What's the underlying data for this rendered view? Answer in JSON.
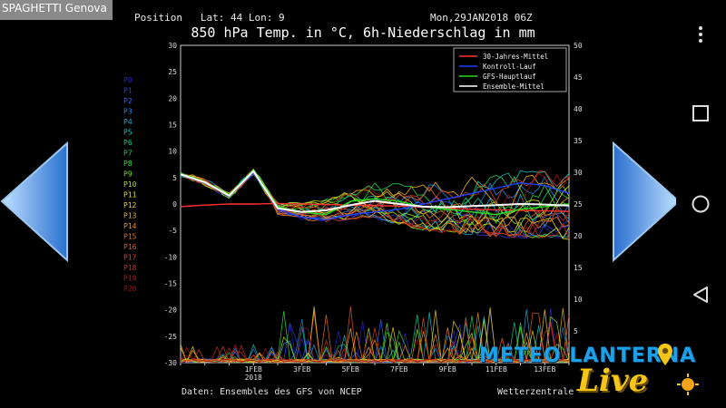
{
  "app": {
    "title": "SPAGHETTI Genova"
  },
  "header": {
    "position": "Position   Lat: 44 Lon: 9",
    "run": "Mon,29JAN2018 06Z",
    "title": "850 hPa Temp. in °C, 6h-Niederschlag in mm"
  },
  "footer": {
    "source": "Daten: Ensembles des GFS von NCEP",
    "credit": "Wetterzentrale"
  },
  "logo": {
    "text": "METEO LANTERNA",
    "script": "Live"
  },
  "nav": {
    "left_arrow": "left-arrow-icon",
    "right_arrow": "right-arrow-icon",
    "menu": "more-vert-icon",
    "recents": "square-icon",
    "home": "circle-icon",
    "back": "triangle-back-icon"
  },
  "colors": {
    "jahresmittel": "#ff3030",
    "kontroll": "#2040ff",
    "hauptlauf": "#20e020",
    "ensemble_mittel": "#ffffff",
    "accent_arrow": "#3a8fe0"
  },
  "chart_data": {
    "type": "line",
    "title": "850 hPa Temp. in °C, 6h-Niederschlag in mm",
    "y_left": {
      "min": -30,
      "max": 30,
      "ticks": [
        30,
        25,
        20,
        15,
        10,
        5,
        0,
        -5,
        -10,
        -15,
        -20,
        -25,
        -30
      ]
    },
    "y_right": {
      "min": 0,
      "max": 50,
      "ticks": [
        50,
        45,
        40,
        35,
        30,
        25,
        20,
        15,
        10,
        5
      ]
    },
    "x_ticks": [
      "1FEB",
      "3FEB",
      "5FEB",
      "7FEB",
      "9FEB",
      "11FEB",
      "13FEB"
    ],
    "x_year_label": "2018",
    "days": 16,
    "legend": [
      {
        "label": "30-Jahres-Mittel",
        "color": "#ff3030"
      },
      {
        "label": "Kontroll-Lauf",
        "color": "#2040ff"
      },
      {
        "label": "GFS-Hauptlauf",
        "color": "#20e020"
      },
      {
        "label": "Ensemble-Mittel",
        "color": "#ffffff"
      }
    ],
    "legend_position": "top-right",
    "members": [
      {
        "name": "P0",
        "color": "#2828c8"
      },
      {
        "name": "P1",
        "color": "#3040e0"
      },
      {
        "name": "P2",
        "color": "#3060ff"
      },
      {
        "name": "P3",
        "color": "#1c88e8"
      },
      {
        "name": "P4",
        "color": "#18a8d8"
      },
      {
        "name": "P5",
        "color": "#18c0c0"
      },
      {
        "name": "P6",
        "color": "#18c890"
      },
      {
        "name": "P7",
        "color": "#20d050"
      },
      {
        "name": "P8",
        "color": "#30e030"
      },
      {
        "name": "P9",
        "color": "#70e020"
      },
      {
        "name": "P10",
        "color": "#a8e018"
      },
      {
        "name": "P11",
        "color": "#d8e018"
      },
      {
        "name": "P12",
        "color": "#f0d018"
      },
      {
        "name": "P13",
        "color": "#f0b018"
      },
      {
        "name": "P14",
        "color": "#f09018"
      },
      {
        "name": "P15",
        "color": "#e87020"
      },
      {
        "name": "P16",
        "color": "#e05820"
      },
      {
        "name": "P17",
        "color": "#d84020"
      },
      {
        "name": "P18",
        "color": "#c83018"
      },
      {
        "name": "P19",
        "color": "#b82010"
      },
      {
        "name": "P20",
        "color": "#a01010"
      }
    ],
    "series": [
      {
        "name": "30-Jahres-Mittel",
        "color": "#ff3030",
        "kind": "temp",
        "values": [
          -0.5,
          -0.2,
          0.0,
          0.0,
          0.1,
          0.0,
          -0.1,
          -0.2,
          -0.3,
          -0.4,
          -0.6,
          -0.8,
          -1.0,
          -1.1,
          -1.2,
          -1.3,
          -1.4
        ]
      },
      {
        "name": "Kontroll-Lauf",
        "color": "#2040ff",
        "kind": "temp",
        "values": [
          5.5,
          4.0,
          1.5,
          6.0,
          -1.0,
          -2.5,
          -3.0,
          -2.0,
          -1.5,
          -1.0,
          0.0,
          1.0,
          2.0,
          3.0,
          4.0,
          3.5,
          2.0
        ]
      },
      {
        "name": "GFS-Hauptlauf",
        "color": "#20e020",
        "kind": "temp",
        "values": [
          5.8,
          4.2,
          1.8,
          6.5,
          -0.5,
          -1.5,
          -2.0,
          0.5,
          1.0,
          0.5,
          -0.5,
          -1.0,
          -1.5,
          -2.0,
          -1.0,
          -0.5,
          0.0
        ]
      },
      {
        "name": "Ensemble-Mittel",
        "color": "#ffffff",
        "kind": "temp",
        "values": [
          5.6,
          4.1,
          1.6,
          6.2,
          -0.8,
          -1.5,
          -1.2,
          -0.2,
          0.6,
          0.0,
          -0.5,
          -0.6,
          -0.4,
          -0.2,
          0.0,
          -0.1,
          -0.3
        ]
      }
    ]
  }
}
